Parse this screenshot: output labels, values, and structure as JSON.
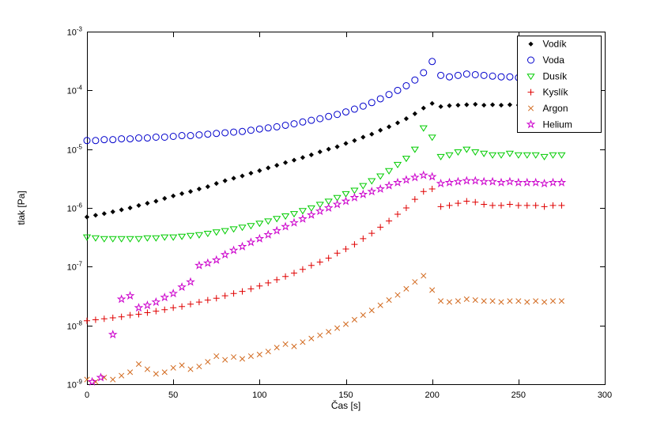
{
  "figure": {
    "background": "#ffffff",
    "plot_background": "#ffffff",
    "axis_color": "#000000"
  },
  "chart_data": {
    "type": "scatter",
    "title": "",
    "xlabel": "Čas [s]",
    "ylabel": "tlak [Pa]",
    "xlim": [
      0,
      300
    ],
    "ylim": [
      1e-09,
      0.001
    ],
    "y_scale": "log",
    "grid": false,
    "legend_position": "northeast",
    "xticks": [
      0,
      50,
      100,
      150,
      200,
      250,
      300
    ],
    "ytick_base": 10,
    "yticks_exp": [
      -9,
      -8,
      -7,
      -6,
      -5,
      -4,
      -3
    ],
    "series": [
      {
        "id": "vodik",
        "name": "Vodík",
        "marker": "diamond",
        "color": "#000000",
        "x": [
          0,
          5,
          10,
          15,
          20,
          25,
          30,
          35,
          40,
          45,
          50,
          55,
          60,
          65,
          70,
          75,
          80,
          85,
          90,
          95,
          100,
          105,
          110,
          115,
          120,
          125,
          130,
          135,
          140,
          145,
          150,
          155,
          160,
          165,
          170,
          175,
          180,
          185,
          190,
          195,
          200,
          205,
          210,
          215,
          220,
          225,
          230,
          235,
          240,
          245,
          250,
          255
        ],
        "y": [
          7e-07,
          7.5e-07,
          8e-07,
          8.6e-07,
          9.3e-07,
          1e-06,
          1.1e-06,
          1.2e-06,
          1.3e-06,
          1.45e-06,
          1.6e-06,
          1.75e-06,
          1.9e-06,
          2.1e-06,
          2.3e-06,
          2.6e-06,
          2.9e-06,
          3.2e-06,
          3.5e-06,
          3.9e-06,
          4.3e-06,
          4.8e-06,
          5.3e-06,
          5.9e-06,
          6.5e-06,
          7.2e-06,
          8e-06,
          9e-06,
          1e-05,
          1.1e-05,
          1.25e-05,
          1.4e-05,
          1.6e-05,
          1.8e-05,
          2.1e-05,
          2.4e-05,
          2.8e-05,
          3.3e-05,
          4e-05,
          5e-05,
          6e-05,
          5.3e-05,
          5.5e-05,
          5.6e-05,
          5.7e-05,
          5.8e-05,
          5.6e-05,
          5.7e-05,
          5.6e-05,
          5.7e-05,
          5.6e-05,
          5.6e-05
        ]
      },
      {
        "id": "voda",
        "name": "Voda",
        "marker": "circle",
        "color": "#0000cc",
        "x": [
          0,
          5,
          10,
          15,
          20,
          25,
          30,
          35,
          40,
          45,
          50,
          55,
          60,
          65,
          70,
          75,
          80,
          85,
          90,
          95,
          100,
          105,
          110,
          115,
          120,
          125,
          130,
          135,
          140,
          145,
          150,
          155,
          160,
          165,
          170,
          175,
          180,
          185,
          190,
          195,
          200,
          205,
          210,
          215,
          220,
          225,
          230,
          235,
          240,
          245,
          250,
          255,
          260,
          265,
          270
        ],
        "y": [
          1.4e-05,
          1.4e-05,
          1.45e-05,
          1.45e-05,
          1.5e-05,
          1.5e-05,
          1.55e-05,
          1.55e-05,
          1.6e-05,
          1.6e-05,
          1.65e-05,
          1.7e-05,
          1.7e-05,
          1.75e-05,
          1.8e-05,
          1.85e-05,
          1.9e-05,
          1.95e-05,
          2e-05,
          2.1e-05,
          2.2e-05,
          2.3e-05,
          2.4e-05,
          2.55e-05,
          2.7e-05,
          2.9e-05,
          3.1e-05,
          3.3e-05,
          3.6e-05,
          3.9e-05,
          4.3e-05,
          4.8e-05,
          5.4e-05,
          6.2e-05,
          7.2e-05,
          8.5e-05,
          0.0001,
          0.00012,
          0.00015,
          0.0002,
          0.00031,
          0.00018,
          0.00017,
          0.00018,
          0.00019,
          0.000185,
          0.00018,
          0.000175,
          0.00017,
          0.00017,
          0.000165,
          0.00017,
          0.000165,
          0.00016,
          0.00016
        ]
      },
      {
        "id": "dusik",
        "name": "Dusík",
        "marker": "triangle-down",
        "color": "#00cc00",
        "x": [
          0,
          5,
          10,
          15,
          20,
          25,
          30,
          35,
          40,
          45,
          50,
          55,
          60,
          65,
          70,
          75,
          80,
          85,
          90,
          95,
          100,
          105,
          110,
          115,
          120,
          125,
          130,
          135,
          140,
          145,
          150,
          155,
          160,
          165,
          170,
          175,
          180,
          185,
          190,
          195,
          200,
          205,
          210,
          215,
          220,
          225,
          230,
          235,
          240,
          245,
          250,
          255,
          260,
          265,
          270,
          275
        ],
        "y": [
          3.2e-07,
          3.1e-07,
          3e-07,
          3e-07,
          3e-07,
          3e-07,
          3e-07,
          3.1e-07,
          3.1e-07,
          3.2e-07,
          3.2e-07,
          3.3e-07,
          3.4e-07,
          3.5e-07,
          3.7e-07,
          3.9e-07,
          4.1e-07,
          4.4e-07,
          4.7e-07,
          5e-07,
          5.5e-07,
          6e-07,
          6.6e-07,
          7.3e-07,
          8e-07,
          9e-07,
          1e-06,
          1.15e-06,
          1.3e-06,
          1.5e-06,
          1.75e-06,
          2e-06,
          2.4e-06,
          2.9e-06,
          3.5e-06,
          4.3e-06,
          5.5e-06,
          7e-06,
          1e-05,
          2.3e-05,
          1.6e-05,
          7.5e-06,
          8e-06,
          9e-06,
          1e-05,
          9e-06,
          8.5e-06,
          8e-06,
          8e-06,
          8.5e-06,
          8e-06,
          8e-06,
          8e-06,
          7.5e-06,
          8e-06,
          8e-06
        ]
      },
      {
        "id": "kyslik",
        "name": "Kyslík",
        "marker": "plus",
        "color": "#e00000",
        "x": [
          0,
          5,
          10,
          15,
          20,
          25,
          30,
          35,
          40,
          45,
          50,
          55,
          60,
          65,
          70,
          75,
          80,
          85,
          90,
          95,
          100,
          105,
          110,
          115,
          120,
          125,
          130,
          135,
          140,
          145,
          150,
          155,
          160,
          165,
          170,
          175,
          180,
          185,
          190,
          195,
          200,
          205,
          210,
          215,
          220,
          225,
          230,
          235,
          240,
          245,
          250,
          255,
          260,
          265,
          270,
          275
        ],
        "y": [
          1.2e-08,
          1.25e-08,
          1.3e-08,
          1.35e-08,
          1.4e-08,
          1.5e-08,
          1.55e-08,
          1.65e-08,
          1.75e-08,
          1.85e-08,
          2e-08,
          2.1e-08,
          2.3e-08,
          2.5e-08,
          2.7e-08,
          2.9e-08,
          3.2e-08,
          3.5e-08,
          3.8e-08,
          4.2e-08,
          4.7e-08,
          5.3e-08,
          6e-08,
          6.8e-08,
          7.8e-08,
          9e-08,
          1.05e-07,
          1.2e-07,
          1.4e-07,
          1.7e-07,
          2e-07,
          2.4e-07,
          3e-07,
          3.7e-07,
          4.7e-07,
          6e-07,
          7.8e-07,
          1e-06,
          1.4e-06,
          1.9e-06,
          2.1e-06,
          1.05e-06,
          1.1e-06,
          1.2e-06,
          1.3e-06,
          1.25e-06,
          1.15e-06,
          1.1e-06,
          1.1e-06,
          1.15e-06,
          1.1e-06,
          1.1e-06,
          1.1e-06,
          1.05e-06,
          1.1e-06,
          1.1e-06
        ]
      },
      {
        "id": "argon",
        "name": "Argon",
        "marker": "x",
        "color": "#d2691e",
        "x": [
          0,
          5,
          10,
          15,
          20,
          25,
          30,
          35,
          40,
          45,
          50,
          55,
          60,
          65,
          70,
          75,
          80,
          85,
          90,
          95,
          100,
          105,
          110,
          115,
          120,
          125,
          130,
          135,
          140,
          145,
          150,
          155,
          160,
          165,
          170,
          175,
          180,
          185,
          190,
          195,
          200,
          205,
          210,
          215,
          220,
          225,
          230,
          235,
          240,
          245,
          250,
          255,
          260,
          265,
          270,
          275
        ],
        "y": [
          1.2e-09,
          1.1e-09,
          1.3e-09,
          1.2e-09,
          1.4e-09,
          1.6e-09,
          2.2e-09,
          1.8e-09,
          1.5e-09,
          1.6e-09,
          1.9e-09,
          2.1e-09,
          1.8e-09,
          2e-09,
          2.4e-09,
          3e-09,
          2.6e-09,
          2.9e-09,
          2.7e-09,
          3e-09,
          3.2e-09,
          3.6e-09,
          4.2e-09,
          4.8e-09,
          4.4e-09,
          5.2e-09,
          6e-09,
          6.8e-09,
          7.8e-09,
          9e-09,
          1.05e-08,
          1.25e-08,
          1.5e-08,
          1.8e-08,
          2.2e-08,
          2.7e-08,
          3.3e-08,
          4.2e-08,
          5.5e-08,
          7e-08,
          4e-08,
          2.6e-08,
          2.5e-08,
          2.6e-08,
          2.8e-08,
          2.7e-08,
          2.6e-08,
          2.6e-08,
          2.5e-08,
          2.6e-08,
          2.6e-08,
          2.5e-08,
          2.6e-08,
          2.5e-08,
          2.6e-08,
          2.6e-08
        ]
      },
      {
        "id": "helium",
        "name": "Helium",
        "marker": "pentagram",
        "color": "#cc00cc",
        "x": [
          3,
          8,
          15,
          20,
          25,
          30,
          35,
          40,
          45,
          50,
          55,
          60,
          65,
          70,
          75,
          80,
          85,
          90,
          95,
          100,
          105,
          110,
          115,
          120,
          125,
          130,
          135,
          140,
          145,
          150,
          155,
          160,
          165,
          170,
          175,
          180,
          185,
          190,
          195,
          200,
          205,
          210,
          215,
          220,
          225,
          230,
          235,
          240,
          245,
          250,
          255,
          260,
          265,
          270,
          275
        ],
        "y": [
          1.1e-09,
          1.3e-09,
          7e-09,
          2.8e-08,
          3.2e-08,
          2e-08,
          2.2e-08,
          2.5e-08,
          3e-08,
          3.5e-08,
          4.5e-08,
          5.5e-08,
          1.05e-07,
          1.15e-07,
          1.3e-07,
          1.6e-07,
          1.9e-07,
          2.2e-07,
          2.6e-07,
          3e-07,
          3.5e-07,
          4.1e-07,
          4.8e-07,
          5.6e-07,
          6.5e-07,
          7.6e-07,
          8.8e-07,
          1e-06,
          1.15e-06,
          1.3e-06,
          1.5e-06,
          1.7e-06,
          1.9e-06,
          2.1e-06,
          2.4e-06,
          2.7e-06,
          3e-06,
          3.3e-06,
          3.6e-06,
          3.4e-06,
          2.6e-06,
          2.7e-06,
          2.8e-06,
          2.9e-06,
          2.9e-06,
          2.8e-06,
          2.8e-06,
          2.7e-06,
          2.8e-06,
          2.7e-06,
          2.7e-06,
          2.7e-06,
          2.6e-06,
          2.7e-06,
          2.7e-06
        ]
      }
    ]
  }
}
